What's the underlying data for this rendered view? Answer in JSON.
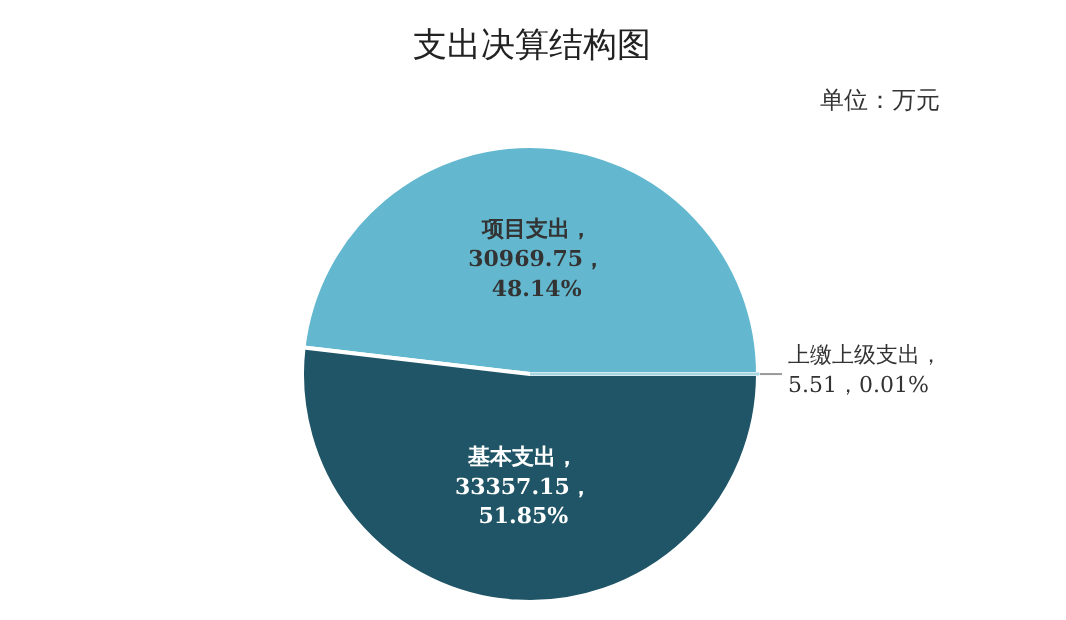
{
  "chart_data": {
    "type": "pie",
    "title": "支出决算结构图",
    "annotations": [
      "单位：万元"
    ],
    "categories": [
      "项目支出",
      "基本支出",
      "上缴上级支出"
    ],
    "values": [
      30969.75,
      33357.15,
      5.51
    ],
    "colors": [
      "#63b8cf",
      "#1f5566",
      "#a9d6e3"
    ],
    "value_labels": [
      "，\n30969.75，\n48.14%",
      "，\n33357.15，\n51.85%",
      "，\n5.51，0.01%"
    ]
  }
}
